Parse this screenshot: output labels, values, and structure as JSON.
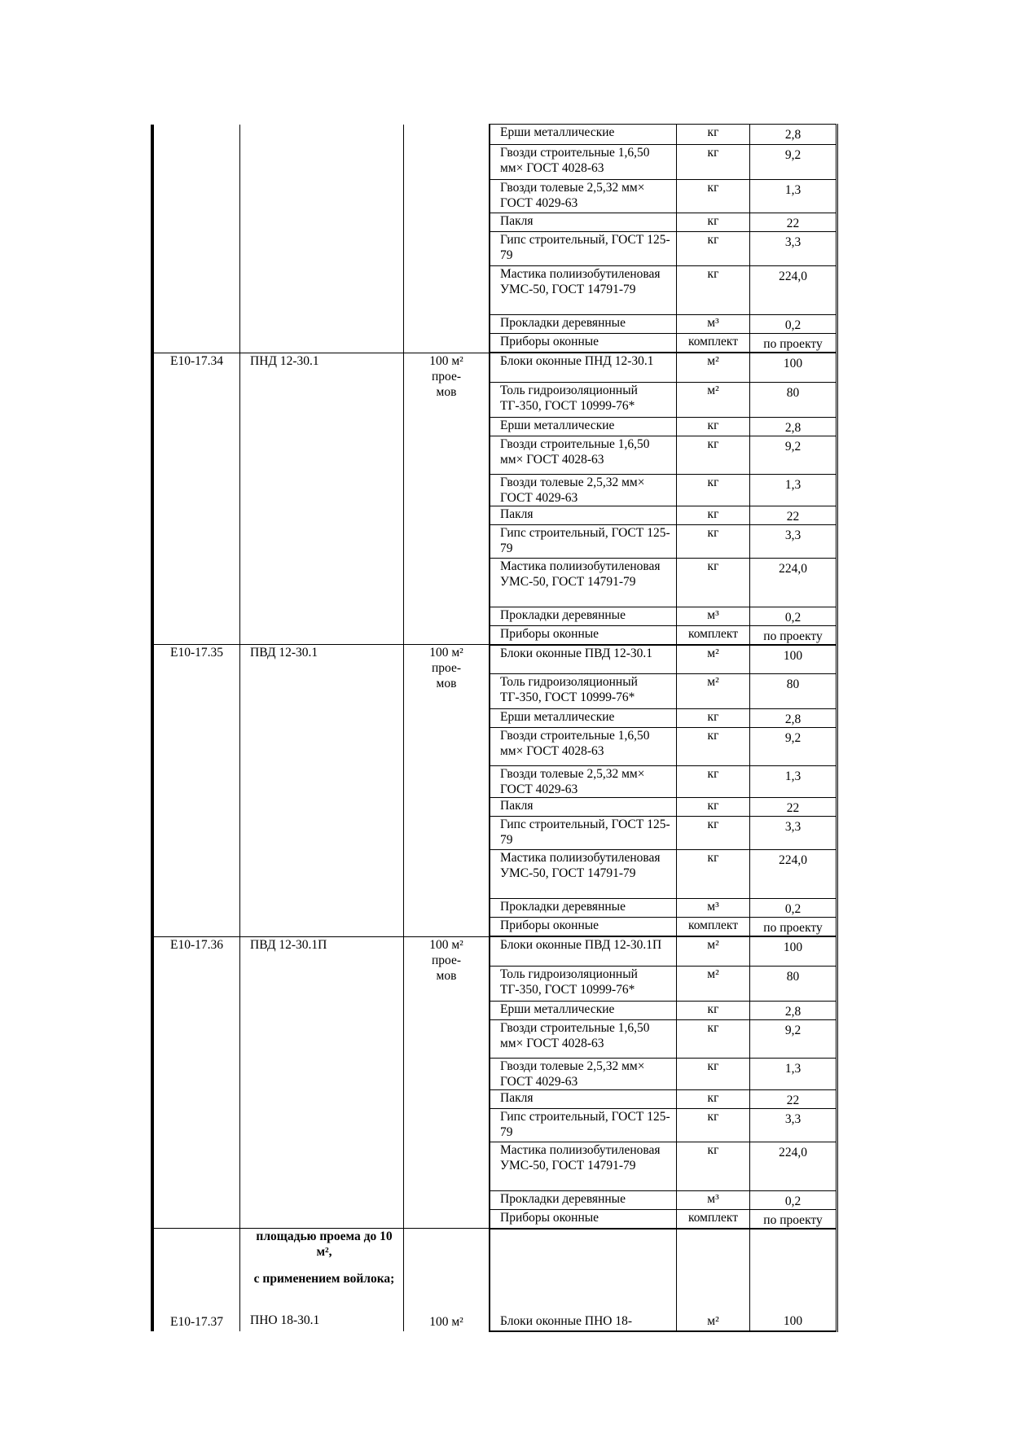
{
  "groups": [
    {
      "code": "",
      "name": "",
      "unit": [],
      "materials": [
        {
          "name": "Ерши металлические",
          "unit": "кг",
          "qty": "2,8"
        },
        {
          "name": "Гвозди строительные 1,6,50 мм× ГОСТ 4028-63",
          "unit": "кг",
          "qty": "9,2"
        },
        {
          "name": "Гвозди толевые 2,5,32 мм× ГОСТ 4029-63",
          "unit": "кг",
          "qty": "1,3"
        },
        {
          "name": "Пакля",
          "unit": "кг",
          "qty": "22"
        },
        {
          "name": "Гипс строительный, ГОСТ 125-79",
          "unit": "кг",
          "qty": "3,3"
        },
        {
          "name": "Мастика полиизобутиленовая УМС-50, ГОСТ 14791-79",
          "unit": "кг",
          "qty": "224,0"
        },
        {
          "name": "Прокладки деревянные",
          "unit": "м³",
          "qty": "0,2"
        },
        {
          "name": "Приборы оконные",
          "unit": "комплект",
          "qty": "по проекту"
        }
      ]
    },
    {
      "code": "Е10-17.34",
      "name": "ПНД 12-30.1",
      "unit": [
        "100 м²",
        "прое-",
        "мов"
      ],
      "materials": [
        {
          "name": "Блоки оконные ПНД 12-30.1",
          "unit": "м²",
          "qty": "100"
        },
        {
          "name": "Толь гидроизоляционный ТГ-350, ГОСТ 10999-76*",
          "unit": "м²",
          "qty": "80"
        },
        {
          "name": "Ерши металлические",
          "unit": "кг",
          "qty": "2,8"
        },
        {
          "name": "Гвозди строительные 1,6,50 мм× ГОСТ 4028-63",
          "unit": "кг",
          "qty": "9,2"
        },
        {
          "name": "Гвозди толевые 2,5,32 мм× ГОСТ 4029-63",
          "unit": "кг",
          "qty": "1,3"
        },
        {
          "name": "Пакля",
          "unit": "кг",
          "qty": "22"
        },
        {
          "name": "Гипс строительный, ГОСТ 125-79",
          "unit": "кг",
          "qty": "3,3"
        },
        {
          "name": "Мастика полиизобутиленовая УМС-50, ГОСТ 14791-79",
          "unit": "кг",
          "qty": "224,0"
        },
        {
          "name": "Прокладки деревянные",
          "unit": "м³",
          "qty": "0,2"
        },
        {
          "name": "Приборы оконные",
          "unit": "комплект",
          "qty": "по проекту"
        }
      ]
    },
    {
      "code": "Е10-17.35",
      "name": "ПВД 12-30.1",
      "unit": [
        "100 м²",
        "прое-",
        "мов"
      ],
      "materials": [
        {
          "name": "Блоки оконные ПВД 12-30.1",
          "unit": "м²",
          "qty": "100"
        },
        {
          "name": "Толь гидроизоляционный ТГ-350, ГОСТ 10999-76*",
          "unit": "м²",
          "qty": "80"
        },
        {
          "name": "Ерши металлические",
          "unit": "кг",
          "qty": "2,8"
        },
        {
          "name": "Гвозди строительные 1,6,50 мм× ГОСТ 4028-63",
          "unit": "кг",
          "qty": "9,2"
        },
        {
          "name": "Гвозди толевые 2,5,32 мм× ГОСТ 4029-63",
          "unit": "кг",
          "qty": "1,3"
        },
        {
          "name": "Пакля",
          "unit": "кг",
          "qty": "22"
        },
        {
          "name": "Гипс строительный, ГОСТ 125-79",
          "unit": "кг",
          "qty": "3,3"
        },
        {
          "name": "Мастика полиизобутиленовая УМС-50, ГОСТ 14791-79",
          "unit": "кг",
          "qty": "224,0"
        },
        {
          "name": "Прокладки деревянные",
          "unit": "м³",
          "qty": "0,2"
        },
        {
          "name": "Приборы оконные",
          "unit": "комплект",
          "qty": "по проекту"
        }
      ]
    },
    {
      "code": "Е10-17.36",
      "name": "ПВД 12-30.1П",
      "unit": [
        "100 м²",
        "прое-",
        "мов"
      ],
      "materials": [
        {
          "name": "Блоки оконные ПВД 12-30.1П",
          "unit": "м²",
          "qty": "100"
        },
        {
          "name": "Толь гидроизоляционный ТГ-350, ГОСТ 10999-76*",
          "unit": "м²",
          "qty": "80"
        },
        {
          "name": "Ерши металлические",
          "unit": "кг",
          "qty": "2,8"
        },
        {
          "name": "Гвозди строительные 1,6,50 мм× ГОСТ 4028-63",
          "unit": "кг",
          "qty": "9,2"
        },
        {
          "name": "Гвозди толевые 2,5,32 мм× ГОСТ 4029-63",
          "unit": "кг",
          "qty": "1,3"
        },
        {
          "name": "Пакля",
          "unit": "кг",
          "qty": "22"
        },
        {
          "name": "Гипс строительный, ГОСТ 125-79",
          "unit": "кг",
          "qty": "3,3"
        },
        {
          "name": "Мастика полиизобутиленовая УМС-50, ГОСТ 14791-79",
          "unit": "кг",
          "qty": "224,0"
        },
        {
          "name": "Прокладки деревянные",
          "unit": "м³",
          "qty": "0,2"
        },
        {
          "name": "Приборы оконные",
          "unit": "комплект",
          "qty": "по проекту"
        }
      ]
    }
  ],
  "section": {
    "heading_1": "площадью проема до 10 м²,",
    "heading_2": "с применением войлока;"
  },
  "last_row": {
    "code": "Е10-17.37",
    "name": "ПНО 18-30.1",
    "unit": "100 м²",
    "material": "Блоки оконные ПНО 18-",
    "material_unit": "м²",
    "qty": "100"
  }
}
